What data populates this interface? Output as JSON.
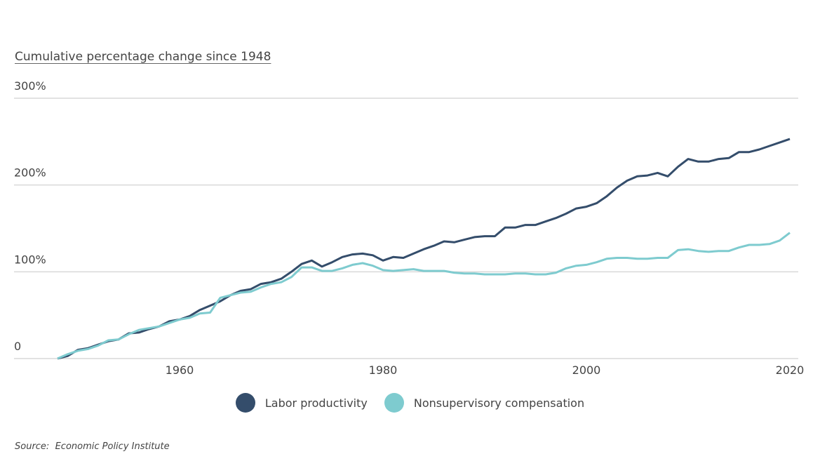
{
  "chart_data": {
    "type": "line",
    "title": "Cumulative percentage change since 1948",
    "source_label": "Source:",
    "source": "Economic Policy Institute",
    "xlim": [
      1948,
      2020
    ],
    "ylim": [
      0,
      300
    ],
    "x_ticks": [
      1960,
      1980,
      2000,
      2020
    ],
    "x_tick_labels": [
      "1960",
      "1980",
      "2000",
      "2020"
    ],
    "y_ticks": [
      0,
      100,
      200,
      300
    ],
    "y_tick_labels": [
      "0",
      "100%",
      "200%",
      "300%"
    ],
    "grid": "horizontal",
    "legend_position": "bottom",
    "x": [
      1948,
      1949,
      1950,
      1951,
      1952,
      1953,
      1954,
      1955,
      1956,
      1957,
      1958,
      1959,
      1960,
      1961,
      1962,
      1963,
      1964,
      1965,
      1966,
      1967,
      1968,
      1969,
      1970,
      1971,
      1972,
      1973,
      1974,
      1975,
      1976,
      1977,
      1978,
      1979,
      1980,
      1981,
      1982,
      1983,
      1984,
      1985,
      1986,
      1987,
      1988,
      1989,
      1990,
      1991,
      1992,
      1993,
      1994,
      1995,
      1996,
      1997,
      1998,
      1999,
      2000,
      2001,
      2002,
      2003,
      2004,
      2005,
      2006,
      2007,
      2008,
      2009,
      2010,
      2011,
      2012,
      2013,
      2014,
      2015,
      2016,
      2017,
      2018,
      2019,
      2020
    ],
    "series": [
      {
        "name": "Labor productivity",
        "color": "#344d6b",
        "values": [
          0,
          3,
          10,
          12,
          16,
          20,
          22,
          29,
          30,
          34,
          37,
          43,
          45,
          49,
          56,
          61,
          66,
          73,
          78,
          80,
          86,
          88,
          92,
          100,
          109,
          113,
          106,
          111,
          117,
          120,
          121,
          119,
          113,
          117,
          116,
          121,
          126,
          130,
          135,
          134,
          137,
          140,
          141,
          141,
          151,
          151,
          154,
          154,
          158,
          162,
          167,
          173,
          175,
          179,
          187,
          197,
          205,
          210,
          211,
          214,
          210,
          221,
          230,
          227,
          227,
          230,
          231,
          238,
          238,
          241,
          245,
          249,
          253
        ]
      },
      {
        "name": "Nonsupervisory compensation",
        "color": "#7ecbcf",
        "values": [
          0,
          5,
          9,
          11,
          15,
          21,
          22,
          28,
          33,
          35,
          37,
          41,
          45,
          47,
          52,
          53,
          70,
          73,
          76,
          77,
          82,
          86,
          88,
          94,
          105,
          105,
          101,
          101,
          104,
          108,
          110,
          107,
          102,
          101,
          102,
          103,
          101,
          101,
          101,
          99,
          98,
          98,
          97,
          97,
          97,
          98,
          98,
          97,
          97,
          99,
          104,
          107,
          108,
          111,
          115,
          116,
          116,
          115,
          115,
          116,
          116,
          125,
          126,
          124,
          123,
          124,
          124,
          128,
          131,
          131,
          132,
          136,
          145
        ]
      }
    ]
  }
}
